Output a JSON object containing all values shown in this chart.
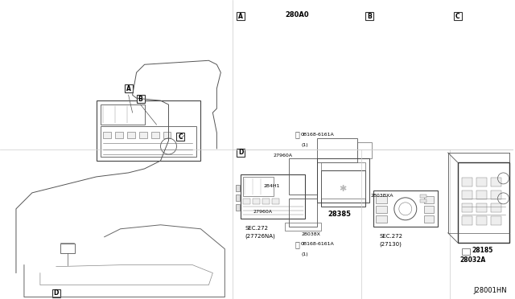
{
  "title": "",
  "bg_color": "#ffffff",
  "border_color": "#000000",
  "line_color": "#333333",
  "text_color": "#000000",
  "diagram_code": "J28001HN",
  "sections": {
    "main_view": {
      "label_A": "A",
      "label_B": "B",
      "label_C": "C",
      "label_D": "D"
    },
    "section_A": {
      "box_label": "A",
      "part_label1": "280A0",
      "part_label2": "28385",
      "ref_label": "SEC.272",
      "ref_label2": "(27726NA)"
    },
    "section_B": {
      "box_label": "B",
      "ref_label": "SEC.272",
      "ref_label2": "(27130)"
    },
    "section_C": {
      "box_label": "C",
      "part_label1": "28185",
      "part_label2": "28032A"
    },
    "section_D": {
      "box_label": "D",
      "part_labels": [
        "0B168-6161A",
        "(1)",
        "27960A",
        "284H1",
        "27960A",
        "2803BXA",
        "28038X",
        "0B168-6161A",
        "(1)"
      ]
    }
  }
}
